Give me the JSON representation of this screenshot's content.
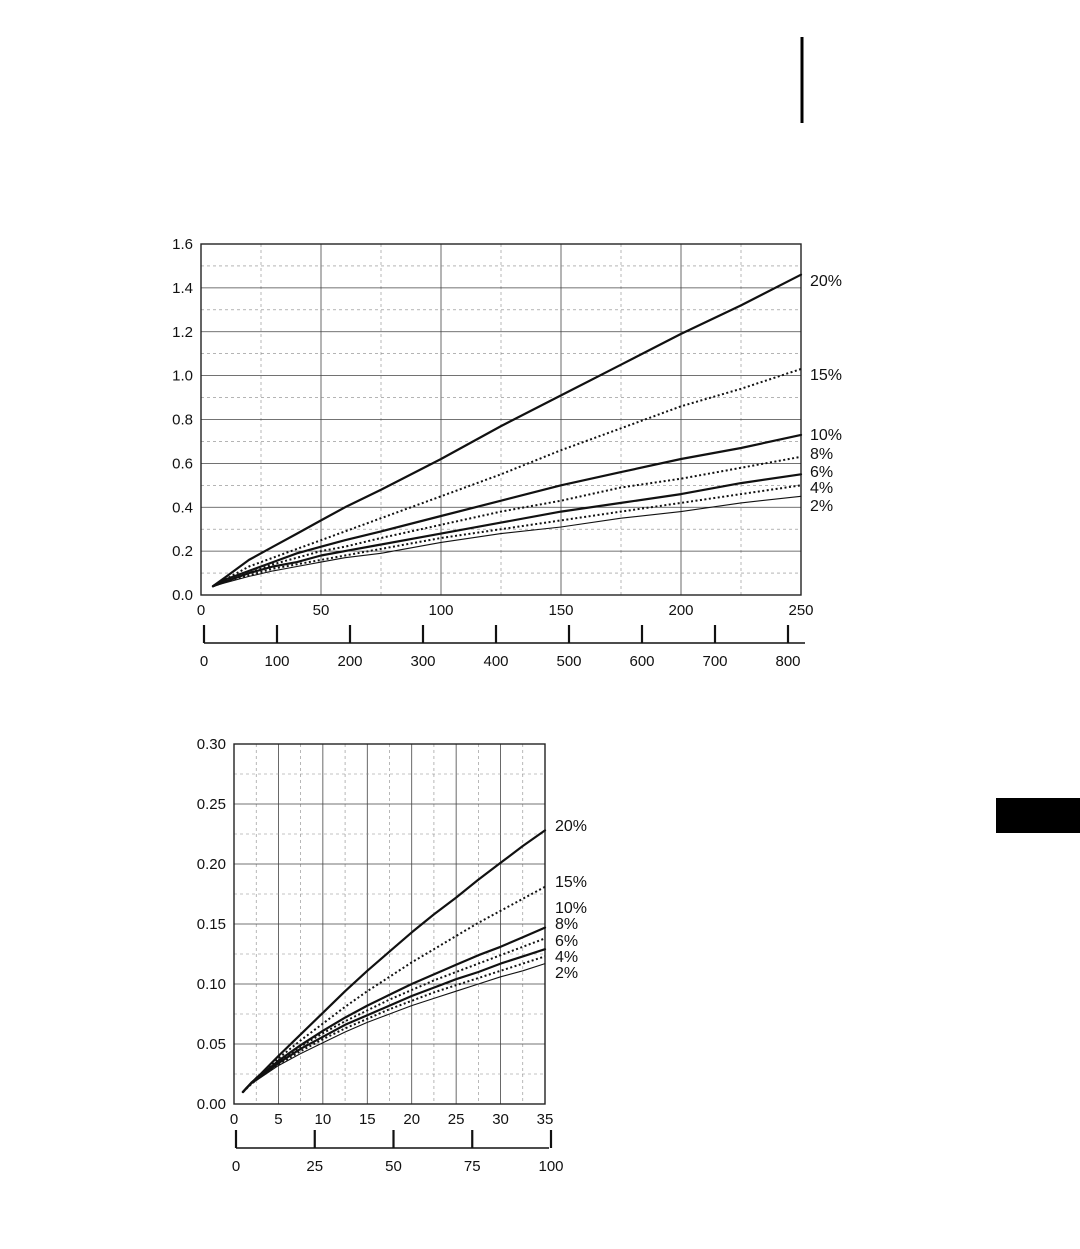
{
  "page": {
    "tab_color": "#000000"
  },
  "chart_data": [
    {
      "type": "line",
      "title": "",
      "xlabel": "",
      "ylabel": "",
      "xlim": [
        0,
        250
      ],
      "ylim": [
        0,
        1.6
      ],
      "x_ticks": [
        "0",
        "50",
        "100",
        "150",
        "200",
        "250"
      ],
      "y_ticks": [
        "0.0",
        "0.2",
        "0.4",
        "0.6",
        "0.8",
        "1.0",
        "1.2",
        "1.4",
        "1.6"
      ],
      "secondary_x_axis": {
        "ticks": [
          "0",
          "100",
          "200",
          "300",
          "400",
          "500",
          "600",
          "700",
          "800"
        ],
        "values": [
          0,
          100,
          200,
          300,
          400,
          500,
          600,
          700,
          800
        ],
        "max_at_primary": 250
      },
      "grid": true,
      "x": [
        5,
        10,
        20,
        30,
        40,
        50,
        60,
        75,
        100,
        125,
        150,
        175,
        200,
        225,
        250
      ],
      "series": [
        {
          "name": "20%",
          "style": "solid",
          "weight": "bold",
          "values": [
            0.04,
            0.08,
            0.16,
            0.22,
            0.28,
            0.34,
            0.4,
            0.48,
            0.62,
            0.77,
            0.91,
            1.05,
            1.19,
            1.32,
            1.46
          ]
        },
        {
          "name": "15%",
          "style": "dotted",
          "weight": "bold",
          "values": [
            0.04,
            0.07,
            0.13,
            0.17,
            0.21,
            0.25,
            0.29,
            0.35,
            0.45,
            0.55,
            0.66,
            0.76,
            0.86,
            0.94,
            1.03
          ]
        },
        {
          "name": "10%",
          "style": "solid",
          "weight": "bold",
          "values": [
            0.04,
            0.07,
            0.11,
            0.15,
            0.19,
            0.22,
            0.25,
            0.29,
            0.36,
            0.43,
            0.5,
            0.56,
            0.62,
            0.67,
            0.73
          ]
        },
        {
          "name": "8%",
          "style": "dotted",
          "weight": "bold",
          "values": [
            0.04,
            0.065,
            0.1,
            0.14,
            0.17,
            0.2,
            0.22,
            0.26,
            0.32,
            0.38,
            0.43,
            0.49,
            0.53,
            0.58,
            0.63
          ]
        },
        {
          "name": "6%",
          "style": "solid",
          "weight": "bold",
          "values": [
            0.04,
            0.06,
            0.1,
            0.13,
            0.15,
            0.18,
            0.2,
            0.23,
            0.28,
            0.33,
            0.38,
            0.42,
            0.46,
            0.51,
            0.55
          ]
        },
        {
          "name": "4%",
          "style": "dotted",
          "weight": "bold",
          "values": [
            0.04,
            0.06,
            0.09,
            0.12,
            0.14,
            0.16,
            0.18,
            0.21,
            0.26,
            0.3,
            0.34,
            0.38,
            0.42,
            0.46,
            0.5
          ]
        },
        {
          "name": "2%",
          "style": "solid",
          "weight": "thin",
          "values": [
            0.04,
            0.055,
            0.085,
            0.11,
            0.13,
            0.15,
            0.17,
            0.19,
            0.24,
            0.28,
            0.31,
            0.35,
            0.38,
            0.42,
            0.45
          ]
        }
      ]
    },
    {
      "type": "line",
      "title": "",
      "xlabel": "",
      "ylabel": "",
      "xlim": [
        0,
        35
      ],
      "ylim": [
        0,
        0.3
      ],
      "x_ticks": [
        "0",
        "5",
        "10",
        "15",
        "20",
        "25",
        "30",
        "35"
      ],
      "y_ticks": [
        "0.00",
        "0.05",
        "0.10",
        "0.15",
        "0.20",
        "0.25",
        "0.30"
      ],
      "secondary_x_axis": {
        "ticks": [
          "0",
          "25",
          "50",
          "75",
          "100"
        ],
        "values": [
          0,
          25,
          50,
          75,
          100
        ],
        "max_at_primary": 35
      },
      "grid": true,
      "x": [
        1,
        2,
        3,
        5,
        7.5,
        10,
        12.5,
        15,
        17.5,
        20,
        22.5,
        25,
        27.5,
        30,
        32.5,
        35
      ],
      "series": [
        {
          "name": "20%",
          "style": "solid",
          "weight": "bold",
          "values": [
            0.01,
            0.018,
            0.025,
            0.04,
            0.058,
            0.076,
            0.094,
            0.111,
            0.127,
            0.143,
            0.158,
            0.172,
            0.187,
            0.201,
            0.215,
            0.228
          ]
        },
        {
          "name": "15%",
          "style": "dotted",
          "weight": "bold",
          "values": [
            0.01,
            0.018,
            0.025,
            0.038,
            0.053,
            0.067,
            0.081,
            0.094,
            0.106,
            0.118,
            0.129,
            0.14,
            0.151,
            0.161,
            0.171,
            0.181
          ]
        },
        {
          "name": "10%",
          "style": "solid",
          "weight": "bold",
          "values": [
            0.01,
            0.018,
            0.024,
            0.036,
            0.049,
            0.061,
            0.072,
            0.082,
            0.091,
            0.1,
            0.108,
            0.116,
            0.124,
            0.131,
            0.139,
            0.147
          ]
        },
        {
          "name": "8%",
          "style": "dotted",
          "weight": "bold",
          "values": [
            0.01,
            0.018,
            0.024,
            0.035,
            0.048,
            0.059,
            0.069,
            0.078,
            0.087,
            0.095,
            0.103,
            0.11,
            0.117,
            0.124,
            0.131,
            0.138
          ]
        },
        {
          "name": "6%",
          "style": "solid",
          "weight": "bold",
          "values": [
            0.01,
            0.018,
            0.023,
            0.034,
            0.046,
            0.056,
            0.066,
            0.074,
            0.082,
            0.09,
            0.097,
            0.104,
            0.11,
            0.117,
            0.123,
            0.129
          ]
        },
        {
          "name": "4%",
          "style": "dotted",
          "weight": "bold",
          "values": [
            0.01,
            0.017,
            0.023,
            0.033,
            0.044,
            0.054,
            0.063,
            0.071,
            0.079,
            0.086,
            0.093,
            0.099,
            0.105,
            0.111,
            0.117,
            0.123
          ]
        },
        {
          "name": "2%",
          "style": "solid",
          "weight": "thin",
          "values": [
            0.01,
            0.017,
            0.022,
            0.032,
            0.042,
            0.051,
            0.06,
            0.068,
            0.075,
            0.082,
            0.088,
            0.094,
            0.1,
            0.106,
            0.111,
            0.117
          ]
        }
      ]
    }
  ]
}
